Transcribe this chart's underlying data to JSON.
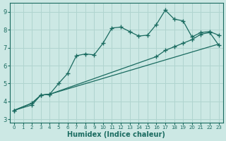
{
  "xlabel": "Humidex (Indice chaleur)",
  "ylabel": "",
  "bg_color": "#cce8e4",
  "grid_color": "#b0d4cf",
  "line_color": "#1a6b60",
  "xlim": [
    -0.5,
    23.5
  ],
  "ylim": [
    2.8,
    9.5
  ],
  "xticks": [
    0,
    1,
    2,
    3,
    4,
    5,
    6,
    7,
    8,
    9,
    10,
    11,
    12,
    13,
    14,
    15,
    16,
    17,
    18,
    19,
    20,
    21,
    22,
    23
  ],
  "yticks": [
    3,
    4,
    5,
    6,
    7,
    8,
    9
  ],
  "line1_x": [
    0,
    2,
    3,
    4,
    5,
    6,
    7,
    8,
    9,
    10,
    11,
    12,
    13,
    14,
    15,
    16,
    17,
    18,
    19,
    20,
    21,
    22,
    23
  ],
  "line1_y": [
    3.5,
    3.8,
    4.35,
    4.4,
    5.0,
    5.55,
    6.55,
    6.65,
    6.6,
    7.25,
    8.1,
    8.15,
    7.9,
    7.65,
    7.7,
    8.3,
    9.1,
    8.6,
    8.5,
    7.6,
    7.85,
    7.9,
    7.7
  ],
  "line2_x": [
    0,
    2,
    3,
    4,
    16,
    17,
    18,
    19,
    20,
    21,
    22,
    23
  ],
  "line2_y": [
    3.5,
    3.9,
    4.35,
    4.4,
    6.5,
    6.85,
    7.05,
    7.25,
    7.45,
    7.75,
    7.85,
    7.15
  ],
  "line3_x": [
    0,
    2,
    3,
    4,
    23
  ],
  "line3_y": [
    3.5,
    3.9,
    4.35,
    4.4,
    7.2
  ]
}
